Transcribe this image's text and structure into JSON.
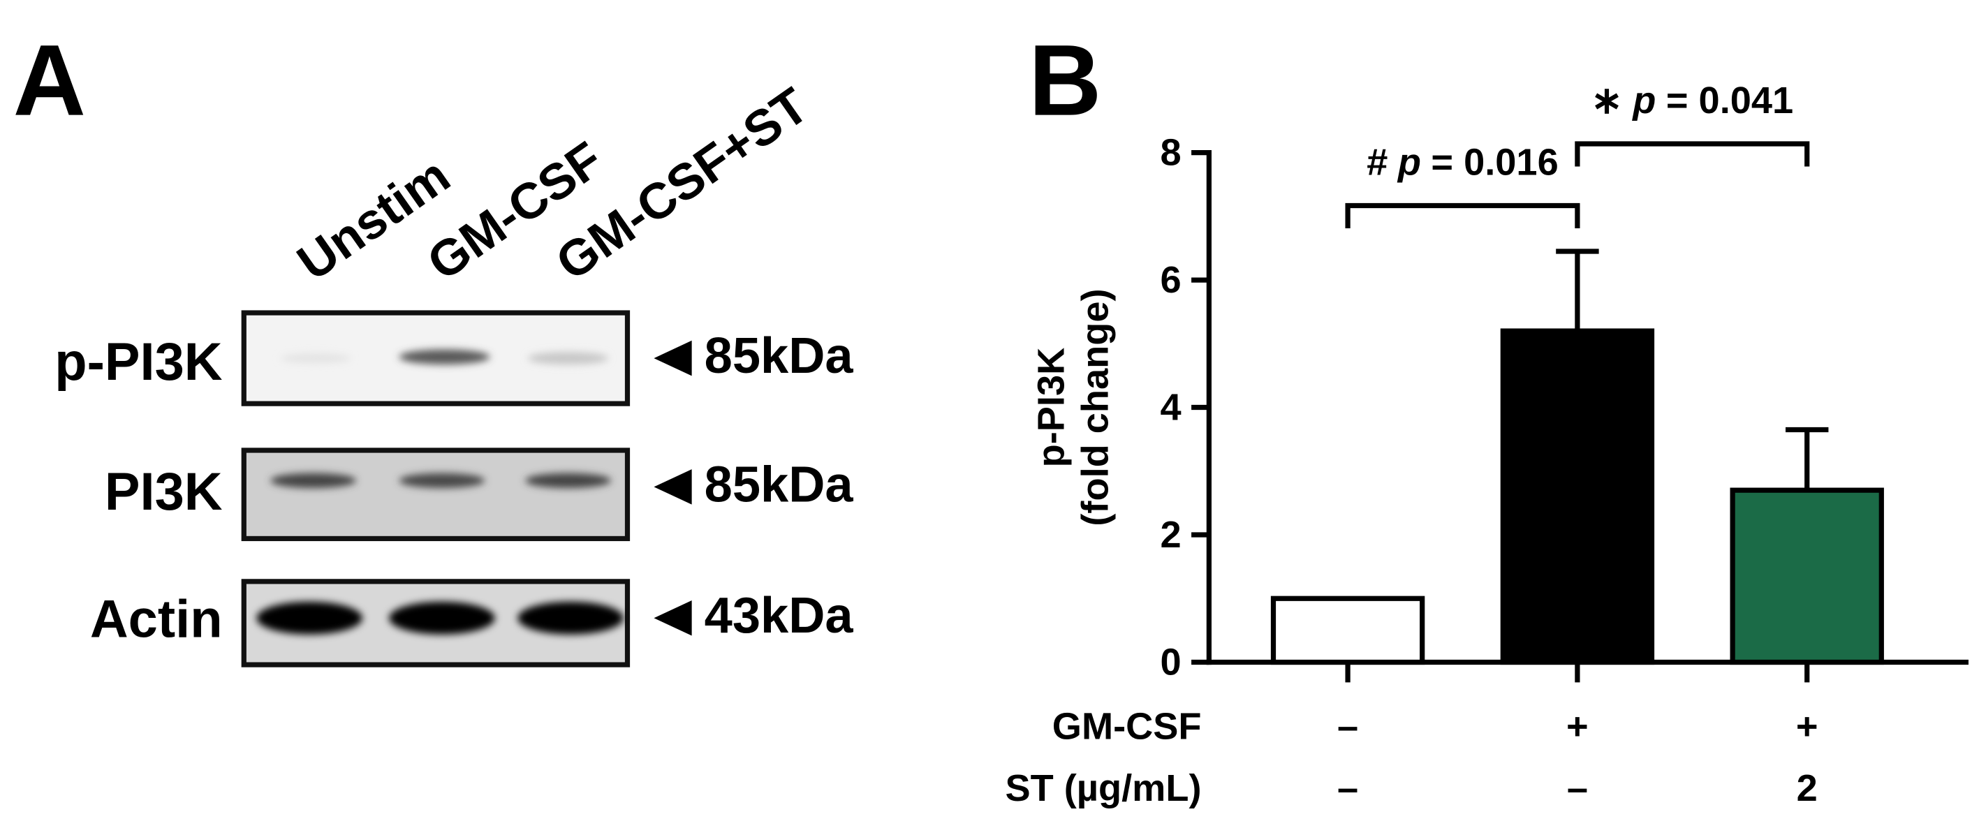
{
  "panel_a": {
    "label": "A",
    "lanes": [
      "Unstim",
      "GM-CSF",
      "GM-CSF+ST"
    ],
    "blots": [
      {
        "name": "p-PI3K",
        "size": "85kDa"
      },
      {
        "name": "PI3K",
        "size": "85kDa"
      },
      {
        "name": "Actin",
        "size": "43kDa"
      }
    ]
  },
  "chart_data": {
    "type": "bar",
    "panel_label": "B",
    "y_label": [
      "p-PI3K",
      "(fold change)"
    ],
    "categories": [
      null,
      null,
      null
    ],
    "values": [
      1,
      5.2,
      2.7
    ],
    "errors": [
      null,
      1.25,
      0.95
    ],
    "colors": [
      "#ffffff",
      "#000000",
      "#1b6b47"
    ],
    "ylim": [
      0,
      8
    ],
    "yticks": [
      0,
      2,
      4,
      6,
      8
    ],
    "condition_rows": [
      {
        "name": "GM-CSF",
        "values": [
          "–",
          "+",
          "+"
        ]
      },
      {
        "name": "ST (µg/mL)",
        "values": [
          "–",
          "–",
          "2"
        ]
      }
    ],
    "brackets": [
      {
        "symbol": "#",
        "stat": "p",
        "text": "= 0.016",
        "from": 0,
        "to": 1
      },
      {
        "symbol": "∗",
        "stat": "p",
        "text": "= 0.041",
        "from": 1,
        "to": 2
      }
    ]
  }
}
